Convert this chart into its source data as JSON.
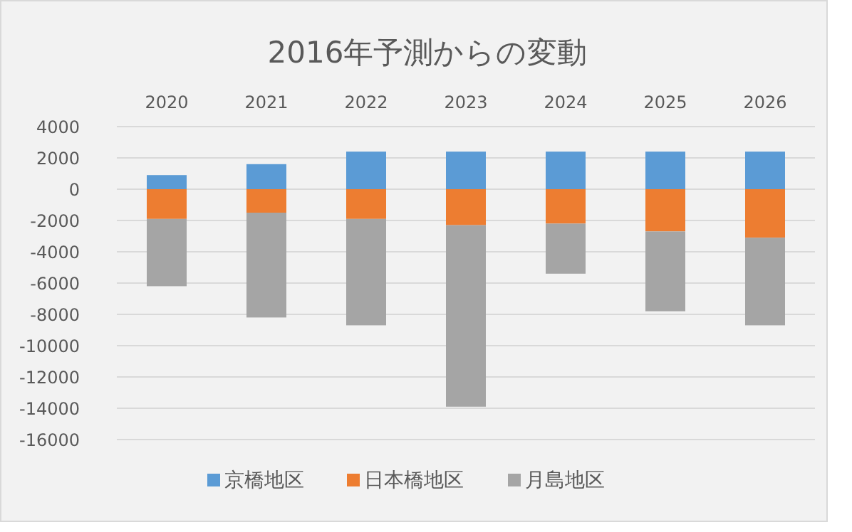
{
  "chart_data": {
    "type": "bar",
    "stacked": true,
    "title": "2016年予測からの変動",
    "categories": [
      "2020",
      "2021",
      "2022",
      "2023",
      "2024",
      "2025",
      "2026"
    ],
    "series": [
      {
        "name": "京橋地区",
        "color": "#5b9bd5",
        "values": [
          900,
          1600,
          2400,
          2400,
          2400,
          2400,
          2400
        ]
      },
      {
        "name": "日本橋地区",
        "color": "#ed7d31",
        "values": [
          -1900,
          -1500,
          -1900,
          -2300,
          -2200,
          -2700,
          -3100
        ]
      },
      {
        "name": "月島地区",
        "color": "#a5a5a5",
        "values": [
          -4300,
          -6700,
          -6800,
          -11600,
          -3200,
          -5100,
          -5600
        ]
      }
    ],
    "ylim": [
      -16000,
      4000
    ],
    "yticks": [
      -16000,
      -14000,
      -12000,
      -10000,
      -8000,
      -6000,
      -4000,
      -2000,
      0,
      2000,
      4000
    ],
    "grid": "y",
    "legend": "bottom"
  }
}
